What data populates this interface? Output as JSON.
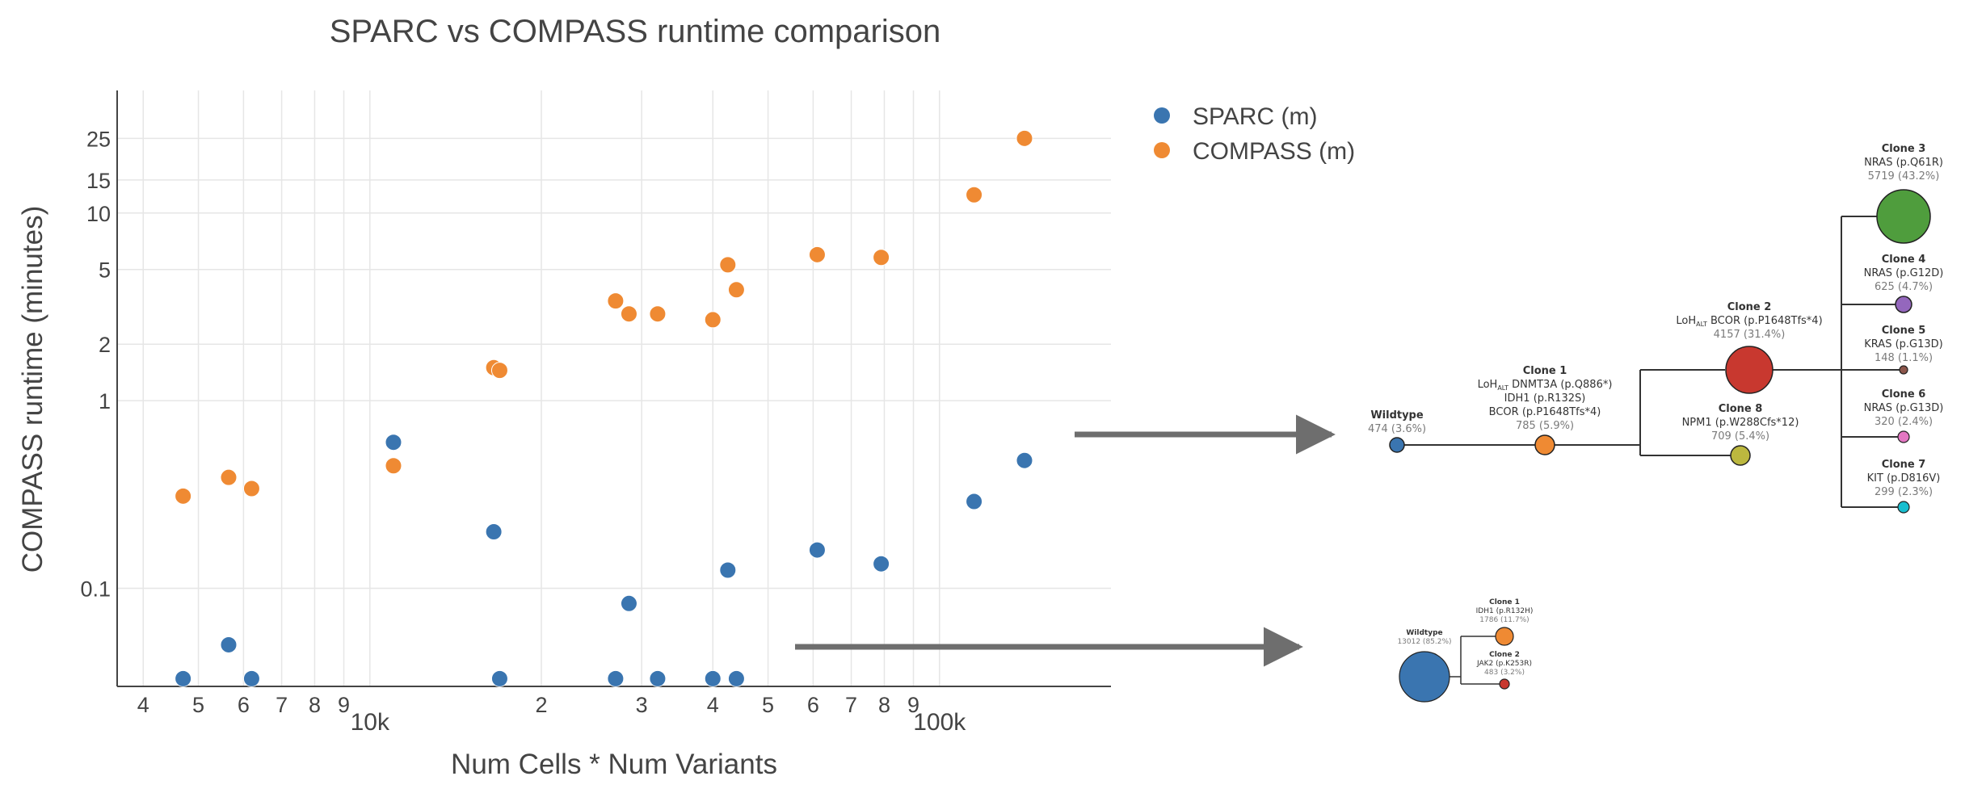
{
  "chart_data": {
    "type": "scatter",
    "title": "SPARC vs COMPASS runtime comparison",
    "xlabel": "Num Cells * Num Variants",
    "ylabel": "COMPASS runtime (minutes)",
    "x_scale": "log",
    "y_scale": "log",
    "xlim": [
      3600,
      200000
    ],
    "ylim": [
      0.03,
      45
    ],
    "grid": true,
    "legend_position": "top-right",
    "x_ticks": [
      {
        "value": 4000,
        "label": "4"
      },
      {
        "value": 5000,
        "label": "5"
      },
      {
        "value": 6000,
        "label": "6"
      },
      {
        "value": 7000,
        "label": "7"
      },
      {
        "value": 8000,
        "label": "8"
      },
      {
        "value": 9000,
        "label": "9"
      },
      {
        "value": 10000,
        "label": "10k",
        "major": true
      },
      {
        "value": 20000,
        "label": "2"
      },
      {
        "value": 30000,
        "label": "3"
      },
      {
        "value": 40000,
        "label": "4"
      },
      {
        "value": 50000,
        "label": "5"
      },
      {
        "value": 60000,
        "label": "6"
      },
      {
        "value": 70000,
        "label": "7"
      },
      {
        "value": 80000,
        "label": "8"
      },
      {
        "value": 90000,
        "label": "9"
      },
      {
        "value": 100000,
        "label": "100k",
        "major": true
      }
    ],
    "y_ticks": [
      {
        "value": 0.1,
        "label": "0.1"
      },
      {
        "value": 1,
        "label": "1"
      },
      {
        "value": 2,
        "label": "2"
      },
      {
        "value": 5,
        "label": "5"
      },
      {
        "value": 10,
        "label": "10"
      },
      {
        "value": 15,
        "label": "15"
      },
      {
        "value": 25,
        "label": "25"
      }
    ],
    "series": [
      {
        "name": "SPARC (m)",
        "color": "#3a75b0",
        "points": [
          {
            "x": 4700,
            "y": 0.033
          },
          {
            "x": 5650,
            "y": 0.05
          },
          {
            "x": 6200,
            "y": 0.033
          },
          {
            "x": 11000,
            "y": 0.6
          },
          {
            "x": 16500,
            "y": 0.2
          },
          {
            "x": 16900,
            "y": 0.033
          },
          {
            "x": 27000,
            "y": 0.033
          },
          {
            "x": 28500,
            "y": 0.083
          },
          {
            "x": 32000,
            "y": 0.033
          },
          {
            "x": 40000,
            "y": 0.033
          },
          {
            "x": 42500,
            "y": 0.125
          },
          {
            "x": 44000,
            "y": 0.033
          },
          {
            "x": 61000,
            "y": 0.16
          },
          {
            "x": 79000,
            "y": 0.135
          },
          {
            "x": 115000,
            "y": 0.29
          },
          {
            "x": 141000,
            "y": 0.48
          }
        ]
      },
      {
        "name": "COMPASS (m)",
        "color": "#ef8a33",
        "points": [
          {
            "x": 4700,
            "y": 0.31
          },
          {
            "x": 5650,
            "y": 0.39
          },
          {
            "x": 6200,
            "y": 0.34
          },
          {
            "x": 11000,
            "y": 0.45
          },
          {
            "x": 16500,
            "y": 1.5
          },
          {
            "x": 16900,
            "y": 1.45
          },
          {
            "x": 27000,
            "y": 3.4
          },
          {
            "x": 28500,
            "y": 2.9
          },
          {
            "x": 32000,
            "y": 2.9
          },
          {
            "x": 40000,
            "y": 2.7
          },
          {
            "x": 42500,
            "y": 5.3
          },
          {
            "x": 44000,
            "y": 3.9
          },
          {
            "x": 61000,
            "y": 6.0
          },
          {
            "x": 79000,
            "y": 5.8
          },
          {
            "x": 115000,
            "y": 12.5
          },
          {
            "x": 141000,
            "y": 25
          }
        ]
      }
    ]
  },
  "tree_large": {
    "wildtype": {
      "name": "Wildtype",
      "count": "474 (3.6%)",
      "color": "#3a75b0"
    },
    "clone1": {
      "name": "Clone 1",
      "loh_prefix": "LoH",
      "loh_sub": "ALT",
      "line1_rest": " DNMT3A (p.Q886*)",
      "line2": "IDH1 (p.R132S)",
      "line3": "BCOR (p.P1648Tfs*4)",
      "count": "785 (5.9%)",
      "color": "#ef8a33"
    },
    "clone2": {
      "name": "Clone 2",
      "loh_prefix": "LoH",
      "loh_sub": "ALT",
      "line1_rest": " BCOR (p.P1648Tfs*4)",
      "count": "4157 (31.4%)",
      "color": "#c8382f"
    },
    "clone8": {
      "name": "Clone 8",
      "line1": "NPM1 (p.W288Cfs*12)",
      "count": "709 (5.4%)",
      "color": "#bcb83f"
    },
    "clone3": {
      "name": "Clone 3",
      "line1": "NRAS (p.Q61R)",
      "count": "5719 (43.2%)",
      "color": "#4f9d3d"
    },
    "clone4": {
      "name": "Clone 4",
      "line1": "NRAS (p.G12D)",
      "count": "625 (4.7%)",
      "color": "#9467bd"
    },
    "clone5": {
      "name": "Clone 5",
      "line1": "KRAS (p.G13D)",
      "count": "148 (1.1%)",
      "color": "#8c564b"
    },
    "clone6": {
      "name": "Clone 6",
      "line1": "NRAS (p.G13D)",
      "count": "320 (2.4%)",
      "color": "#e377c2"
    },
    "clone7": {
      "name": "Clone 7",
      "line1": "KIT (p.D816V)",
      "count": "299 (2.3%)",
      "color": "#17becf"
    }
  },
  "tree_small": {
    "wildtype": {
      "name": "Wildtype",
      "count": "13012 (85.2%)",
      "color": "#3a75b0"
    },
    "clone1": {
      "name": "Clone 1",
      "line1": "IDH1 (p.R132H)",
      "count": "1786 (11.7%)",
      "color": "#ef8a33"
    },
    "clone2": {
      "name": "Clone 2",
      "line1": "JAK2 (p.K253R)",
      "count": "483 (3.2%)",
      "color": "#c8382f"
    }
  }
}
